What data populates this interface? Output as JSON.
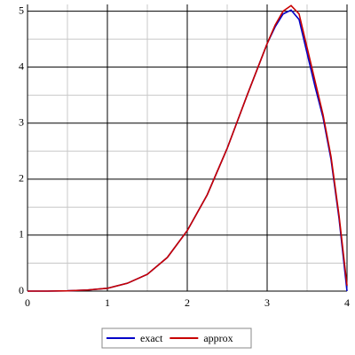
{
  "chart_data": {
    "type": "line",
    "x": [
      0,
      0.25,
      0.5,
      0.75,
      1,
      1.25,
      1.5,
      1.75,
      2,
      2.25,
      2.5,
      2.75,
      3,
      3.1,
      3.2,
      3.3,
      3.4,
      3.5,
      3.6,
      3.7,
      3.8,
      3.9,
      4
    ],
    "series": [
      {
        "name": "exact",
        "color": "#0000c8",
        "values": [
          0,
          0,
          0.005,
          0.02,
          0.05,
          0.14,
          0.3,
          0.6,
          1.08,
          1.72,
          2.55,
          3.5,
          4.42,
          4.72,
          4.95,
          5.02,
          4.85,
          4.25,
          3.65,
          3.1,
          2.35,
          1.3,
          0
        ]
      },
      {
        "name": "approx",
        "color": "#c80000",
        "values": [
          0,
          0,
          0.005,
          0.02,
          0.05,
          0.14,
          0.3,
          0.6,
          1.08,
          1.72,
          2.55,
          3.5,
          4.42,
          4.75,
          5.0,
          5.1,
          4.95,
          4.35,
          3.75,
          3.15,
          2.4,
          1.35,
          0.1
        ]
      }
    ],
    "xlim": [
      0,
      4
    ],
    "xticks": [
      0,
      1,
      2,
      3,
      4
    ],
    "xminor": [
      0.5,
      1.5,
      2.5,
      3.5
    ],
    "ylim": [
      0,
      5.12
    ],
    "yticks": [
      0,
      1,
      2,
      3,
      4,
      5
    ],
    "yminor": [
      0.5,
      1.5,
      2.5,
      3.5,
      4.5
    ],
    "grid": true,
    "legend": "bottom"
  }
}
